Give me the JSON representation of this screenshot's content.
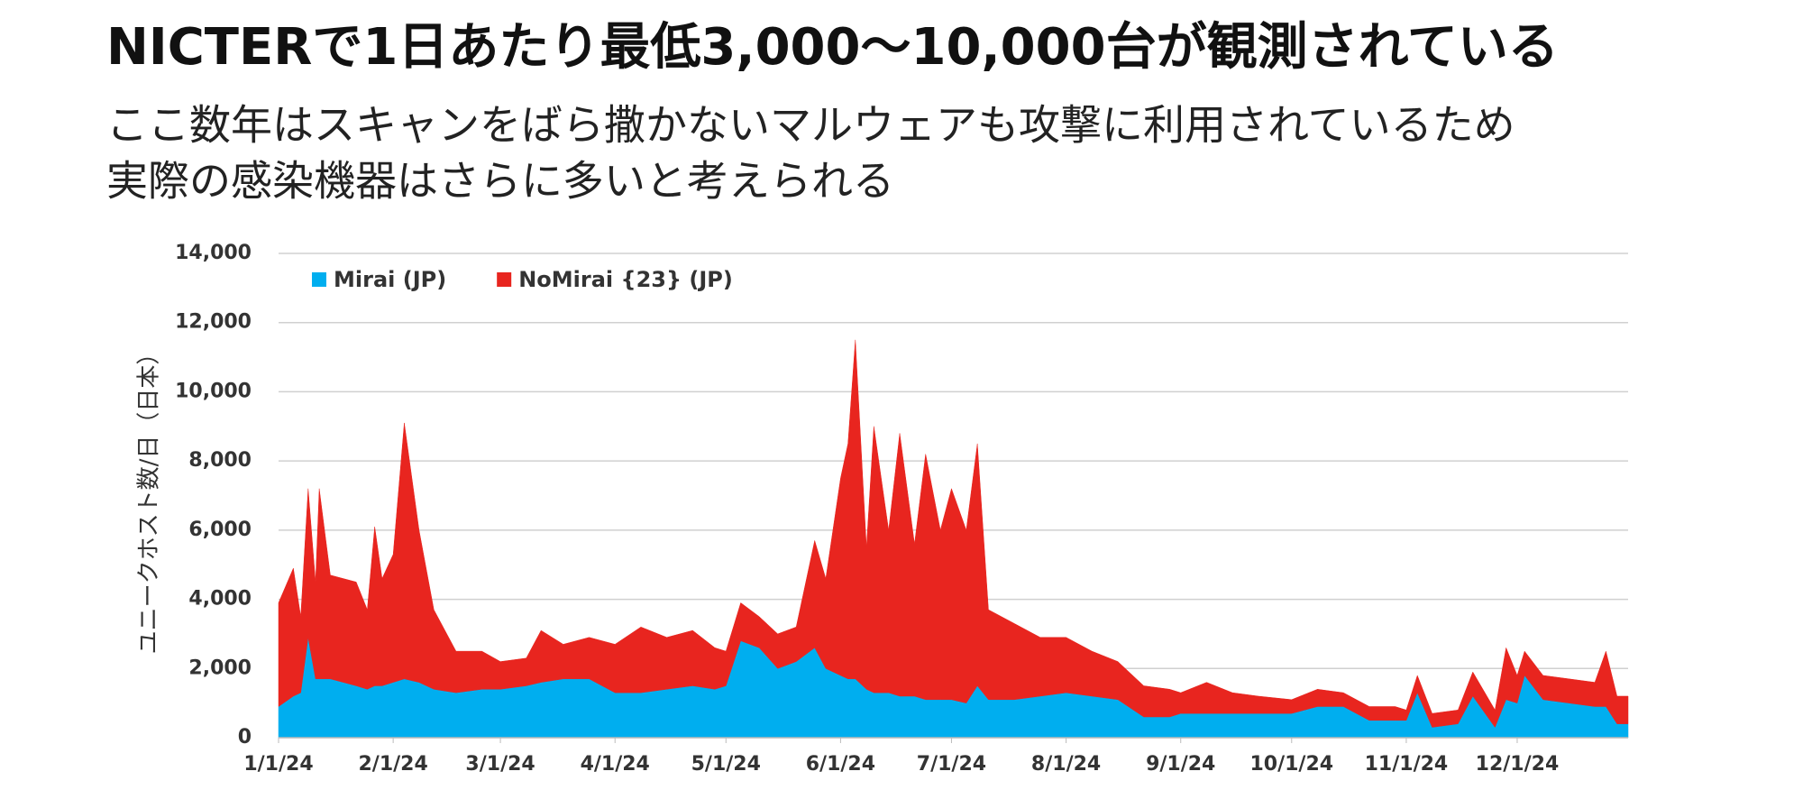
{
  "chart_data": {
    "type": "stacked-area",
    "title": "NICTERで1日あたり最低3,000～10,000台が観測されている",
    "subtitle": [
      "ここ数年はスキャンをばら撒かないマルウェアも攻撃に利用されているため",
      "実際の感染機器はさらに多いと考えられる"
    ],
    "y_label": "ユニークホスト数/日（日本）",
    "x": [
      "2024-01-01",
      "2024-01-05",
      "2024-01-07",
      "2024-01-09",
      "2024-01-11",
      "2024-01-12",
      "2024-01-15",
      "2024-01-22",
      "2024-01-25",
      "2024-01-27",
      "2024-01-29",
      "2024-02-01",
      "2024-02-04",
      "2024-02-08",
      "2024-02-12",
      "2024-02-18",
      "2024-02-25",
      "2024-03-01",
      "2024-03-08",
      "2024-03-12",
      "2024-03-18",
      "2024-03-25",
      "2024-04-01",
      "2024-04-08",
      "2024-04-15",
      "2024-04-22",
      "2024-04-28",
      "2024-05-01",
      "2024-05-05",
      "2024-05-10",
      "2024-05-15",
      "2024-05-20",
      "2024-05-25",
      "2024-05-28",
      "2024-06-01",
      "2024-06-03",
      "2024-06-05",
      "2024-06-08",
      "2024-06-10",
      "2024-06-14",
      "2024-06-17",
      "2024-06-21",
      "2024-06-24",
      "2024-06-28",
      "2024-07-01",
      "2024-07-05",
      "2024-07-08",
      "2024-07-11",
      "2024-07-18",
      "2024-07-25",
      "2024-08-01",
      "2024-08-08",
      "2024-08-15",
      "2024-08-22",
      "2024-08-29",
      "2024-09-01",
      "2024-09-08",
      "2024-09-15",
      "2024-09-22",
      "2024-10-01",
      "2024-10-08",
      "2024-10-15",
      "2024-10-22",
      "2024-10-29",
      "2024-11-01",
      "2024-11-04",
      "2024-11-08",
      "2024-11-15",
      "2024-11-19",
      "2024-11-25",
      "2024-11-28",
      "2024-12-01",
      "2024-12-03",
      "2024-12-08",
      "2024-12-15",
      "2024-12-22",
      "2024-12-25",
      "2024-12-28",
      "2024-12-31"
    ],
    "series": [
      {
        "name": "Mirai (JP)",
        "color": "#00aeef",
        "values": [
          900,
          1200,
          1300,
          2900,
          1700,
          1700,
          1700,
          1500,
          1400,
          1500,
          1500,
          1600,
          1700,
          1600,
          1400,
          1300,
          1400,
          1400,
          1500,
          1600,
          1700,
          1700,
          1300,
          1300,
          1400,
          1500,
          1400,
          1500,
          2800,
          2600,
          2000,
          2200,
          2600,
          2000,
          1800,
          1700,
          1700,
          1400,
          1300,
          1300,
          1200,
          1200,
          1100,
          1100,
          1100,
          1000,
          1500,
          1100,
          1100,
          1200,
          1300,
          1200,
          1100,
          600,
          600,
          700,
          700,
          700,
          700,
          700,
          900,
          900,
          500,
          500,
          500,
          1300,
          300,
          400,
          1200,
          300,
          1100,
          1000,
          1800,
          1100,
          1000,
          900,
          900,
          400,
          400
        ]
      },
      {
        "name": "NoMirai {23} (JP)",
        "color": "#e8251f",
        "values": [
          3000,
          3700,
          2200,
          4300,
          2800,
          5500,
          3000,
          3000,
          2300,
          4600,
          3100,
          3700,
          7400,
          4400,
          2300,
          1200,
          1100,
          800,
          800,
          1500,
          1000,
          1200,
          1400,
          1900,
          1500,
          1600,
          1200,
          1000,
          1100,
          900,
          1000,
          1000,
          3100,
          2600,
          5700,
          6800,
          9800,
          4100,
          7700,
          4700,
          7600,
          4400,
          7100,
          4900,
          6100,
          5000,
          7000,
          2600,
          2200,
          1700,
          1600,
          1300,
          1100,
          900,
          800,
          600,
          900,
          600,
          500,
          400,
          500,
          400,
          400,
          400,
          300,
          500,
          400,
          400,
          700,
          500,
          1500,
          800,
          700,
          700,
          700,
          700,
          1600,
          800,
          800
        ]
      }
    ],
    "xlim": [
      "2024-01-01",
      "2024-12-31"
    ],
    "xticks": [
      {
        "value": "2024-01-01",
        "label": "1/1/24"
      },
      {
        "value": "2024-02-01",
        "label": "2/1/24"
      },
      {
        "value": "2024-03-01",
        "label": "3/1/24"
      },
      {
        "value": "2024-04-01",
        "label": "4/1/24"
      },
      {
        "value": "2024-05-01",
        "label": "5/1/24"
      },
      {
        "value": "2024-06-01",
        "label": "6/1/24"
      },
      {
        "value": "2024-07-01",
        "label": "7/1/24"
      },
      {
        "value": "2024-08-01",
        "label": "8/1/24"
      },
      {
        "value": "2024-09-01",
        "label": "9/1/24"
      },
      {
        "value": "2024-10-01",
        "label": "10/1/24"
      },
      {
        "value": "2024-11-01",
        "label": "11/1/24"
      },
      {
        "value": "2024-12-01",
        "label": "12/1/24"
      }
    ],
    "ylim": [
      0,
      14000
    ],
    "yticks": [
      0,
      {
        "value": 2000,
        "label": "2,000"
      },
      {
        "value": 4000,
        "label": "4,000"
      },
      {
        "value": 6000,
        "label": "6,000"
      },
      {
        "value": 8000,
        "label": "8,000"
      },
      {
        "value": 10000,
        "label": "10,000"
      },
      {
        "value": 12000,
        "label": "12,000"
      },
      {
        "value": 14000,
        "label": "14,000"
      }
    ],
    "grid": true,
    "legend": "top-left"
  }
}
